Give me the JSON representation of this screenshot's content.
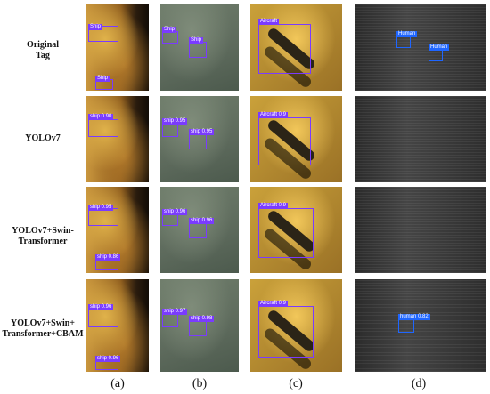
{
  "rows": [
    {
      "label": "Original Tag"
    },
    {
      "label": "YOLOv7"
    },
    {
      "label": "YOLOv7+Swin-Transformer"
    },
    {
      "label": "YOLOv7+Swin-Transformer+CBAM"
    }
  ],
  "row_labels_display": [
    [
      "Original",
      "Tag"
    ],
    [
      "YOLOv7"
    ],
    [
      "YOLOv7+Swin-",
      "Transformer"
    ],
    [
      "YOLOv7+Swin+",
      "Transformer+CBAM"
    ]
  ],
  "columns": [
    "(a)",
    "(b)",
    "(c)",
    "(d)"
  ],
  "detections": {
    "row1": {
      "a": [
        "Ship",
        "Ship"
      ],
      "b": [
        "Ship",
        "Ship"
      ],
      "c": [
        "Aircraft"
      ],
      "d": [
        "Human",
        "Human"
      ]
    },
    "row2": {
      "a": [
        "ship 0.90"
      ],
      "b": [
        "ship 0.95",
        "ship 0.95"
      ],
      "c": [
        "Aircraft 0.9"
      ]
    },
    "row3": {
      "a": [
        "ship 0.95",
        "ship 0.86"
      ],
      "b": [
        "ship 0.96",
        "ship 0.96"
      ],
      "c": [
        "Aircraft 0.9"
      ]
    },
    "row4": {
      "a": [
        "ship 0.96",
        "ship 0.96"
      ],
      "b": [
        "ship 0.97",
        "ship 0.98"
      ],
      "c": [
        "Aircraft 0.9"
      ],
      "d": [
        "human 0.82"
      ]
    }
  }
}
